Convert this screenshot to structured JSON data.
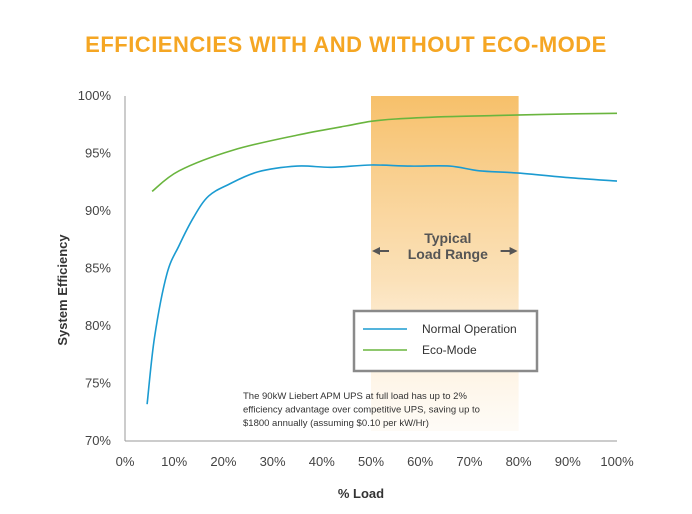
{
  "chart_data": {
    "type": "line",
    "title": "EFFICIENCIES WITH AND WITHOUT ECO-MODE",
    "xlabel": "% Load",
    "ylabel": "System Efficiency",
    "xlim": [
      0,
      100
    ],
    "ylim": [
      70,
      100
    ],
    "x_ticks": [
      "0%",
      "10%",
      "20%",
      "30%",
      "40%",
      "50%",
      "60%",
      "70%",
      "80%",
      "90%",
      "100%"
    ],
    "y_ticks": [
      "70%",
      "75%",
      "80%",
      "85%",
      "90%",
      "95%",
      "100%"
    ],
    "series": [
      {
        "name": "Normal Operation",
        "color": "#1b9bd1",
        "x": [
          4.5,
          6,
          8.5,
          11,
          14,
          17,
          21,
          27,
          35,
          42,
          50,
          58,
          66,
          72,
          80,
          90,
          100
        ],
        "y": [
          73.2,
          79,
          84.5,
          87,
          89.5,
          91.3,
          92.3,
          93.4,
          93.9,
          93.8,
          94.0,
          93.9,
          93.9,
          93.5,
          93.3,
          92.9,
          92.6
        ]
      },
      {
        "name": "Eco-Mode",
        "color": "#6ab53e",
        "x": [
          5.5,
          11,
          22,
          35,
          45,
          50,
          55,
          65,
          75,
          85,
          100
        ],
        "y": [
          91.7,
          93.5,
          95.3,
          96.6,
          97.4,
          97.8,
          98.0,
          98.2,
          98.3,
          98.4,
          98.5
        ]
      }
    ],
    "highlight_band": {
      "x_range": [
        50,
        80
      ],
      "label_line1": "Typical",
      "label_line2": "Load Range",
      "color": "#f7c06a"
    },
    "legend": {
      "placement": "center-right"
    },
    "annotation": [
      "The 90kW Liebert APM UPS at full load has up to 2%",
      "efficiency advantage over competitive UPS, saving up to",
      "$1800 annually  (assuming $0.10 per kW/Hr)"
    ]
  }
}
